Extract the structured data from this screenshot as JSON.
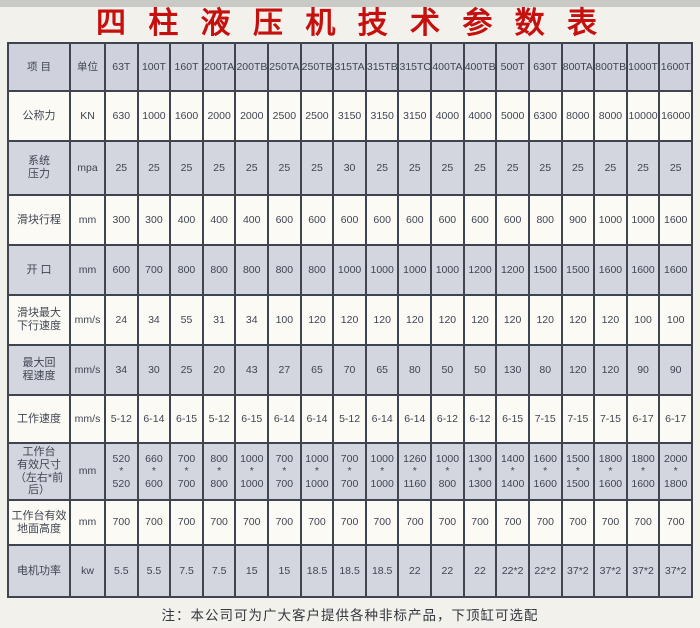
{
  "title": "四 柱 液 压 机 技 术 参 数 表",
  "note": "注：本公司可为广大客户提供各种非标产品，下顶缸可选配",
  "colors": {
    "title_red": "#c6100e",
    "border": "#3e4450",
    "shaded_row_bg": "#d3d5df",
    "plain_row_bg": "#fbfaf5",
    "header_bg": "#cfd2dc",
    "text": "#3f4552"
  },
  "table": {
    "item_header": "项 目",
    "unit_header": "单位",
    "models": [
      "63T",
      "100T",
      "160T",
      "200TA",
      "200TB",
      "250TA",
      "250TB",
      "315TA",
      "315TB",
      "315TC",
      "400TA",
      "400TB",
      "500T",
      "630T",
      "800TA",
      "800TB",
      "1000T",
      "1600T"
    ],
    "rows": [
      {
        "label": "公称力",
        "unit": "KN",
        "values": [
          "630",
          "1000",
          "1600",
          "2000",
          "2000",
          "2500",
          "2500",
          "3150",
          "3150",
          "3150",
          "4000",
          "4000",
          "5000",
          "6300",
          "8000",
          "8000",
          "10000",
          "16000"
        ]
      },
      {
        "label": "系统\n压力",
        "unit": "mpa",
        "values": [
          "25",
          "25",
          "25",
          "25",
          "25",
          "25",
          "25",
          "30",
          "25",
          "25",
          "25",
          "25",
          "25",
          "25",
          "25",
          "25",
          "25",
          "25"
        ]
      },
      {
        "label": "滑块行程",
        "unit": "mm",
        "values": [
          "300",
          "300",
          "400",
          "400",
          "400",
          "600",
          "600",
          "600",
          "600",
          "600",
          "600",
          "600",
          "600",
          "800",
          "900",
          "1000",
          "1000",
          "1600"
        ]
      },
      {
        "label": "开 口",
        "unit": "mm",
        "values": [
          "600",
          "700",
          "800",
          "800",
          "800",
          "800",
          "800",
          "1000",
          "1000",
          "1000",
          "1000",
          "1200",
          "1200",
          "1500",
          "1500",
          "1600",
          "1600",
          "1600"
        ]
      },
      {
        "label": "滑块最大\n下行速度",
        "unit": "mm/s",
        "values": [
          "24",
          "34",
          "55",
          "31",
          "34",
          "100",
          "120",
          "120",
          "120",
          "120",
          "120",
          "120",
          "120",
          "120",
          "120",
          "120",
          "100",
          "100"
        ]
      },
      {
        "label": "最大回\n程速度",
        "unit": "mm/s",
        "values": [
          "34",
          "30",
          "25",
          "20",
          "43",
          "27",
          "65",
          "70",
          "65",
          "80",
          "50",
          "50",
          "130",
          "80",
          "120",
          "120",
          "90",
          "90"
        ]
      },
      {
        "label": "工作速度",
        "unit": "mm/s",
        "values": [
          "5-12",
          "6-14",
          "6-15",
          "5-12",
          "6-15",
          "6-14",
          "6-14",
          "5-12",
          "6-14",
          "6-14",
          "6-12",
          "6-12",
          "6-15",
          "7-15",
          "7-15",
          "7-15",
          "6-17",
          "6-17"
        ]
      },
      {
        "label": "工作台\n有效尺寸\n（左右*前后）",
        "unit": "mm",
        "values": [
          "520\n*\n520",
          "660\n*\n600",
          "700\n*\n700",
          "800\n*\n800",
          "1000\n*\n1000",
          "700\n*\n700",
          "1000\n*\n1000",
          "700\n*\n700",
          "1000\n*\n1000",
          "1260\n*\n1160",
          "1000\n*\n800",
          "1300\n*\n1300",
          "1400\n*\n1400",
          "1600\n*\n1600",
          "1500\n*\n1500",
          "1800\n*\n1600",
          "1800\n*\n1600",
          "2000\n*\n1800"
        ]
      },
      {
        "label": "工作台有效\n地面高度",
        "unit": "mm",
        "values": [
          "700",
          "700",
          "700",
          "700",
          "700",
          "700",
          "700",
          "700",
          "700",
          "700",
          "700",
          "700",
          "700",
          "700",
          "700",
          "700",
          "700",
          "700"
        ]
      },
      {
        "label": "电机功率",
        "unit": "kw",
        "values": [
          "5.5",
          "5.5",
          "7.5",
          "7.5",
          "15",
          "15",
          "18.5",
          "18.5",
          "18.5",
          "22",
          "22",
          "22",
          "22*2",
          "22*2",
          "37*2",
          "37*2",
          "37*2",
          "37*2"
        ]
      }
    ]
  }
}
